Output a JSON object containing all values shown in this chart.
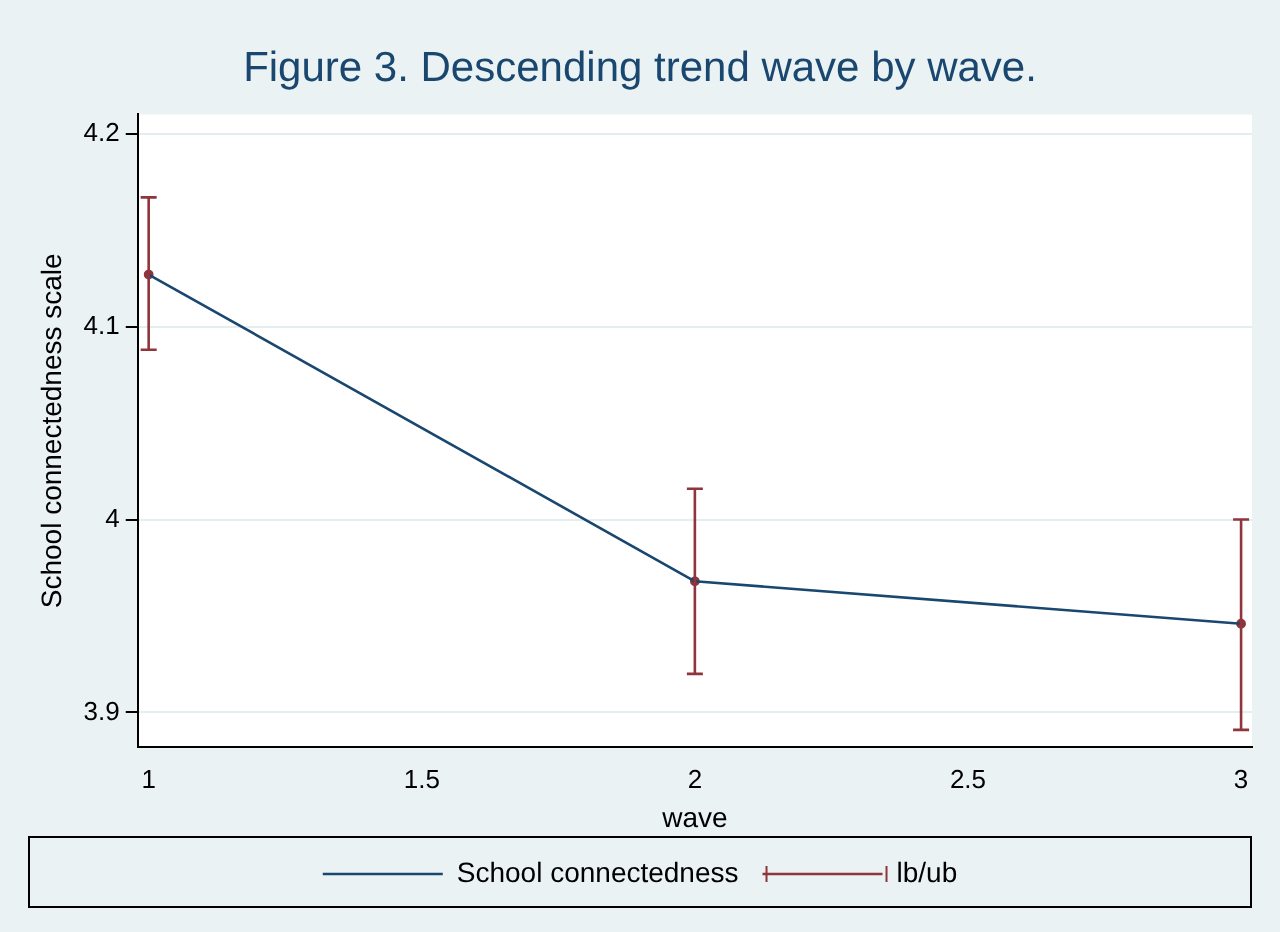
{
  "chart_data": {
    "type": "line",
    "title": "Figure 3. Descending trend wave by wave.",
    "xlabel": "wave",
    "ylabel": "School connectedness scale",
    "x": [
      1,
      2,
      3
    ],
    "series": [
      {
        "name": "School connectedness",
        "color": "#1a476f",
        "values": [
          4.127,
          3.968,
          3.946
        ]
      },
      {
        "name": "lb/ub",
        "type": "scatter",
        "marker": "circle",
        "color": "#90353b",
        "values": [
          4.127,
          3.968,
          3.946
        ],
        "errors": [
          [
            4.088,
            4.167
          ],
          [
            3.92,
            4.016
          ],
          [
            3.891,
            4.0
          ]
        ]
      }
    ],
    "xlim": [
      0.98,
      3.02
    ],
    "xticks": [
      1,
      1.5,
      2,
      2.5,
      3
    ],
    "ylim": [
      3.882,
      4.21
    ],
    "yticks": [
      3.9,
      4,
      4.1,
      4.2
    ],
    "grid": "y",
    "legend": "bottom"
  }
}
